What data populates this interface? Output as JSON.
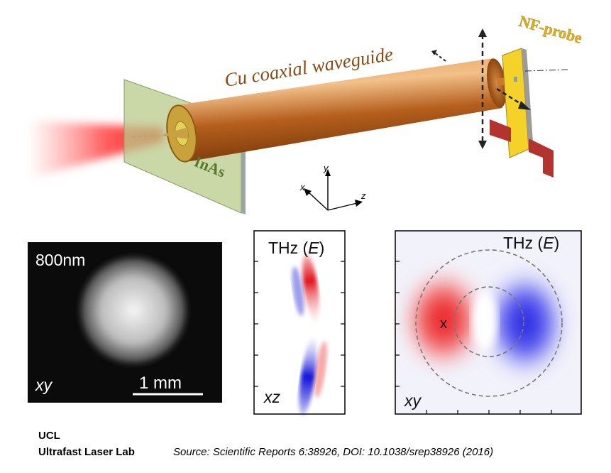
{
  "diagram": {
    "waveguide_label": "Cu coaxial waveguide",
    "probe_label": "NF-probe",
    "substrate_label": "InAs",
    "axes": {
      "x": "x",
      "y": "y",
      "z": "z"
    }
  },
  "panels": {
    "optical": {
      "title": "800nm",
      "plane": "xy",
      "scale": "1 mm"
    },
    "thz_xz": {
      "title": "THz (",
      "field": "E",
      "title_end": ")",
      "plane": "xz"
    },
    "thz_xy": {
      "title": "THz (",
      "field": "E",
      "title_end": ")",
      "plane": "xy",
      "marker": "x"
    }
  },
  "footer": {
    "org1": "UCL",
    "org2": "Ultrafast Laser Lab",
    "source": "Source:  Scientific Reports 6:38926,  DOI: 10.1038/srep38926 (2016)"
  },
  "colors": {
    "copper": "#b5621f",
    "laser": "#ff2a2a",
    "probe": "#f5d22a",
    "glass": "#b8c98a"
  }
}
